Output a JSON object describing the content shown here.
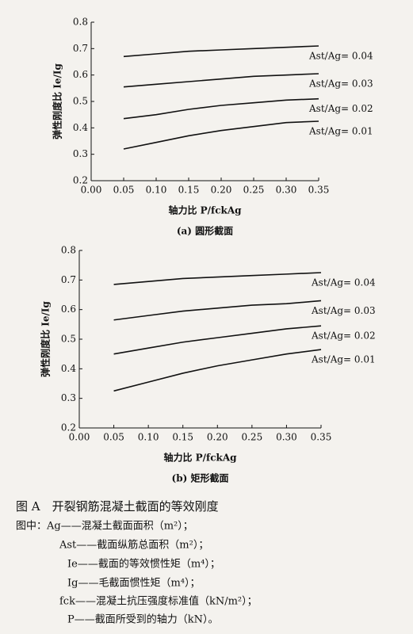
{
  "chart_data": [
    {
      "type": "line",
      "subtitle": "(a) 圆形截面",
      "xlabel": "轴力比 P/fckAg",
      "ylabel": "弹性刚度比 Ie/Ig",
      "x": [
        0.05,
        0.1,
        0.15,
        0.2,
        0.25,
        0.3,
        0.35
      ],
      "series": [
        {
          "name": "Ast/Ag= 0.04",
          "color": "#111111",
          "values": [
            0.67,
            0.68,
            0.69,
            0.695,
            0.7,
            0.705,
            0.71
          ]
        },
        {
          "name": "Ast/Ag= 0.03",
          "color": "#111111",
          "values": [
            0.555,
            0.565,
            0.575,
            0.585,
            0.595,
            0.6,
            0.605
          ]
        },
        {
          "name": "Ast/Ag= 0.02",
          "color": "#111111",
          "values": [
            0.435,
            0.45,
            0.47,
            0.485,
            0.495,
            0.505,
            0.51
          ]
        },
        {
          "name": "Ast/Ag= 0.01",
          "color": "#111111",
          "values": [
            0.32,
            0.345,
            0.37,
            0.39,
            0.405,
            0.42,
            0.425
          ]
        }
      ],
      "xlim": [
        0,
        0.35
      ],
      "ylim": [
        0.2,
        0.8
      ],
      "xticks": [
        {
          "value": 0,
          "label": "0.00"
        },
        0.05,
        {
          "value": 0.1,
          "label": "0.10"
        },
        0.15,
        {
          "value": 0.2,
          "label": "0.20"
        },
        0.25,
        {
          "value": 0.3,
          "label": "0.30"
        },
        0.35
      ],
      "yticks": [
        0.2,
        0.3,
        0.4,
        0.5,
        0.6,
        0.7,
        0.8
      ]
    },
    {
      "type": "line",
      "subtitle": "(b) 矩形截面",
      "xlabel": "轴力比 P/fckAg",
      "ylabel": "弹性刚度比 Ie/Ig",
      "x": [
        0.05,
        0.1,
        0.15,
        0.2,
        0.25,
        0.3,
        0.35
      ],
      "series": [
        {
          "name": "Ast/Ag= 0.04",
          "color": "#111111",
          "values": [
            0.685,
            0.695,
            0.705,
            0.71,
            0.715,
            0.72,
            0.725
          ]
        },
        {
          "name": "Ast/Ag= 0.03",
          "color": "#111111",
          "values": [
            0.565,
            0.58,
            0.595,
            0.605,
            0.615,
            0.62,
            0.63
          ]
        },
        {
          "name": "Ast/Ag= 0.02",
          "color": "#111111",
          "values": [
            0.45,
            0.47,
            0.49,
            0.505,
            0.52,
            0.535,
            0.545
          ]
        },
        {
          "name": "Ast/Ag= 0.01",
          "color": "#111111",
          "values": [
            0.325,
            0.355,
            0.385,
            0.41,
            0.43,
            0.45,
            0.465
          ]
        }
      ],
      "xlim": [
        0,
        0.35
      ],
      "ylim": [
        0.2,
        0.8
      ],
      "xticks": [
        {
          "value": 0,
          "label": "0.00"
        },
        0.05,
        {
          "value": 0.1,
          "label": "0.10"
        },
        0.15,
        {
          "value": 0.2,
          "label": "0.20"
        },
        0.25,
        {
          "value": 0.3,
          "label": "0.30"
        },
        0.35
      ],
      "yticks": [
        0.2,
        0.3,
        0.4,
        0.5,
        0.6,
        0.7,
        0.8
      ]
    }
  ],
  "caption": "图 A　开裂钢筋混凝土截面的等效刚度",
  "notes": [
    "图中：Ag——混凝土截面面积（m²）；",
    "Ast——截面纵筋总面积（m²）；",
    "Ie——截面的等效惯性矩（m⁴）；",
    "Ig——毛截面惯性矩（m⁴）；",
    "fck——混凝土抗压强度标准值（kN/m²）；",
    "P——截面所受到的轴力（kN）。"
  ]
}
